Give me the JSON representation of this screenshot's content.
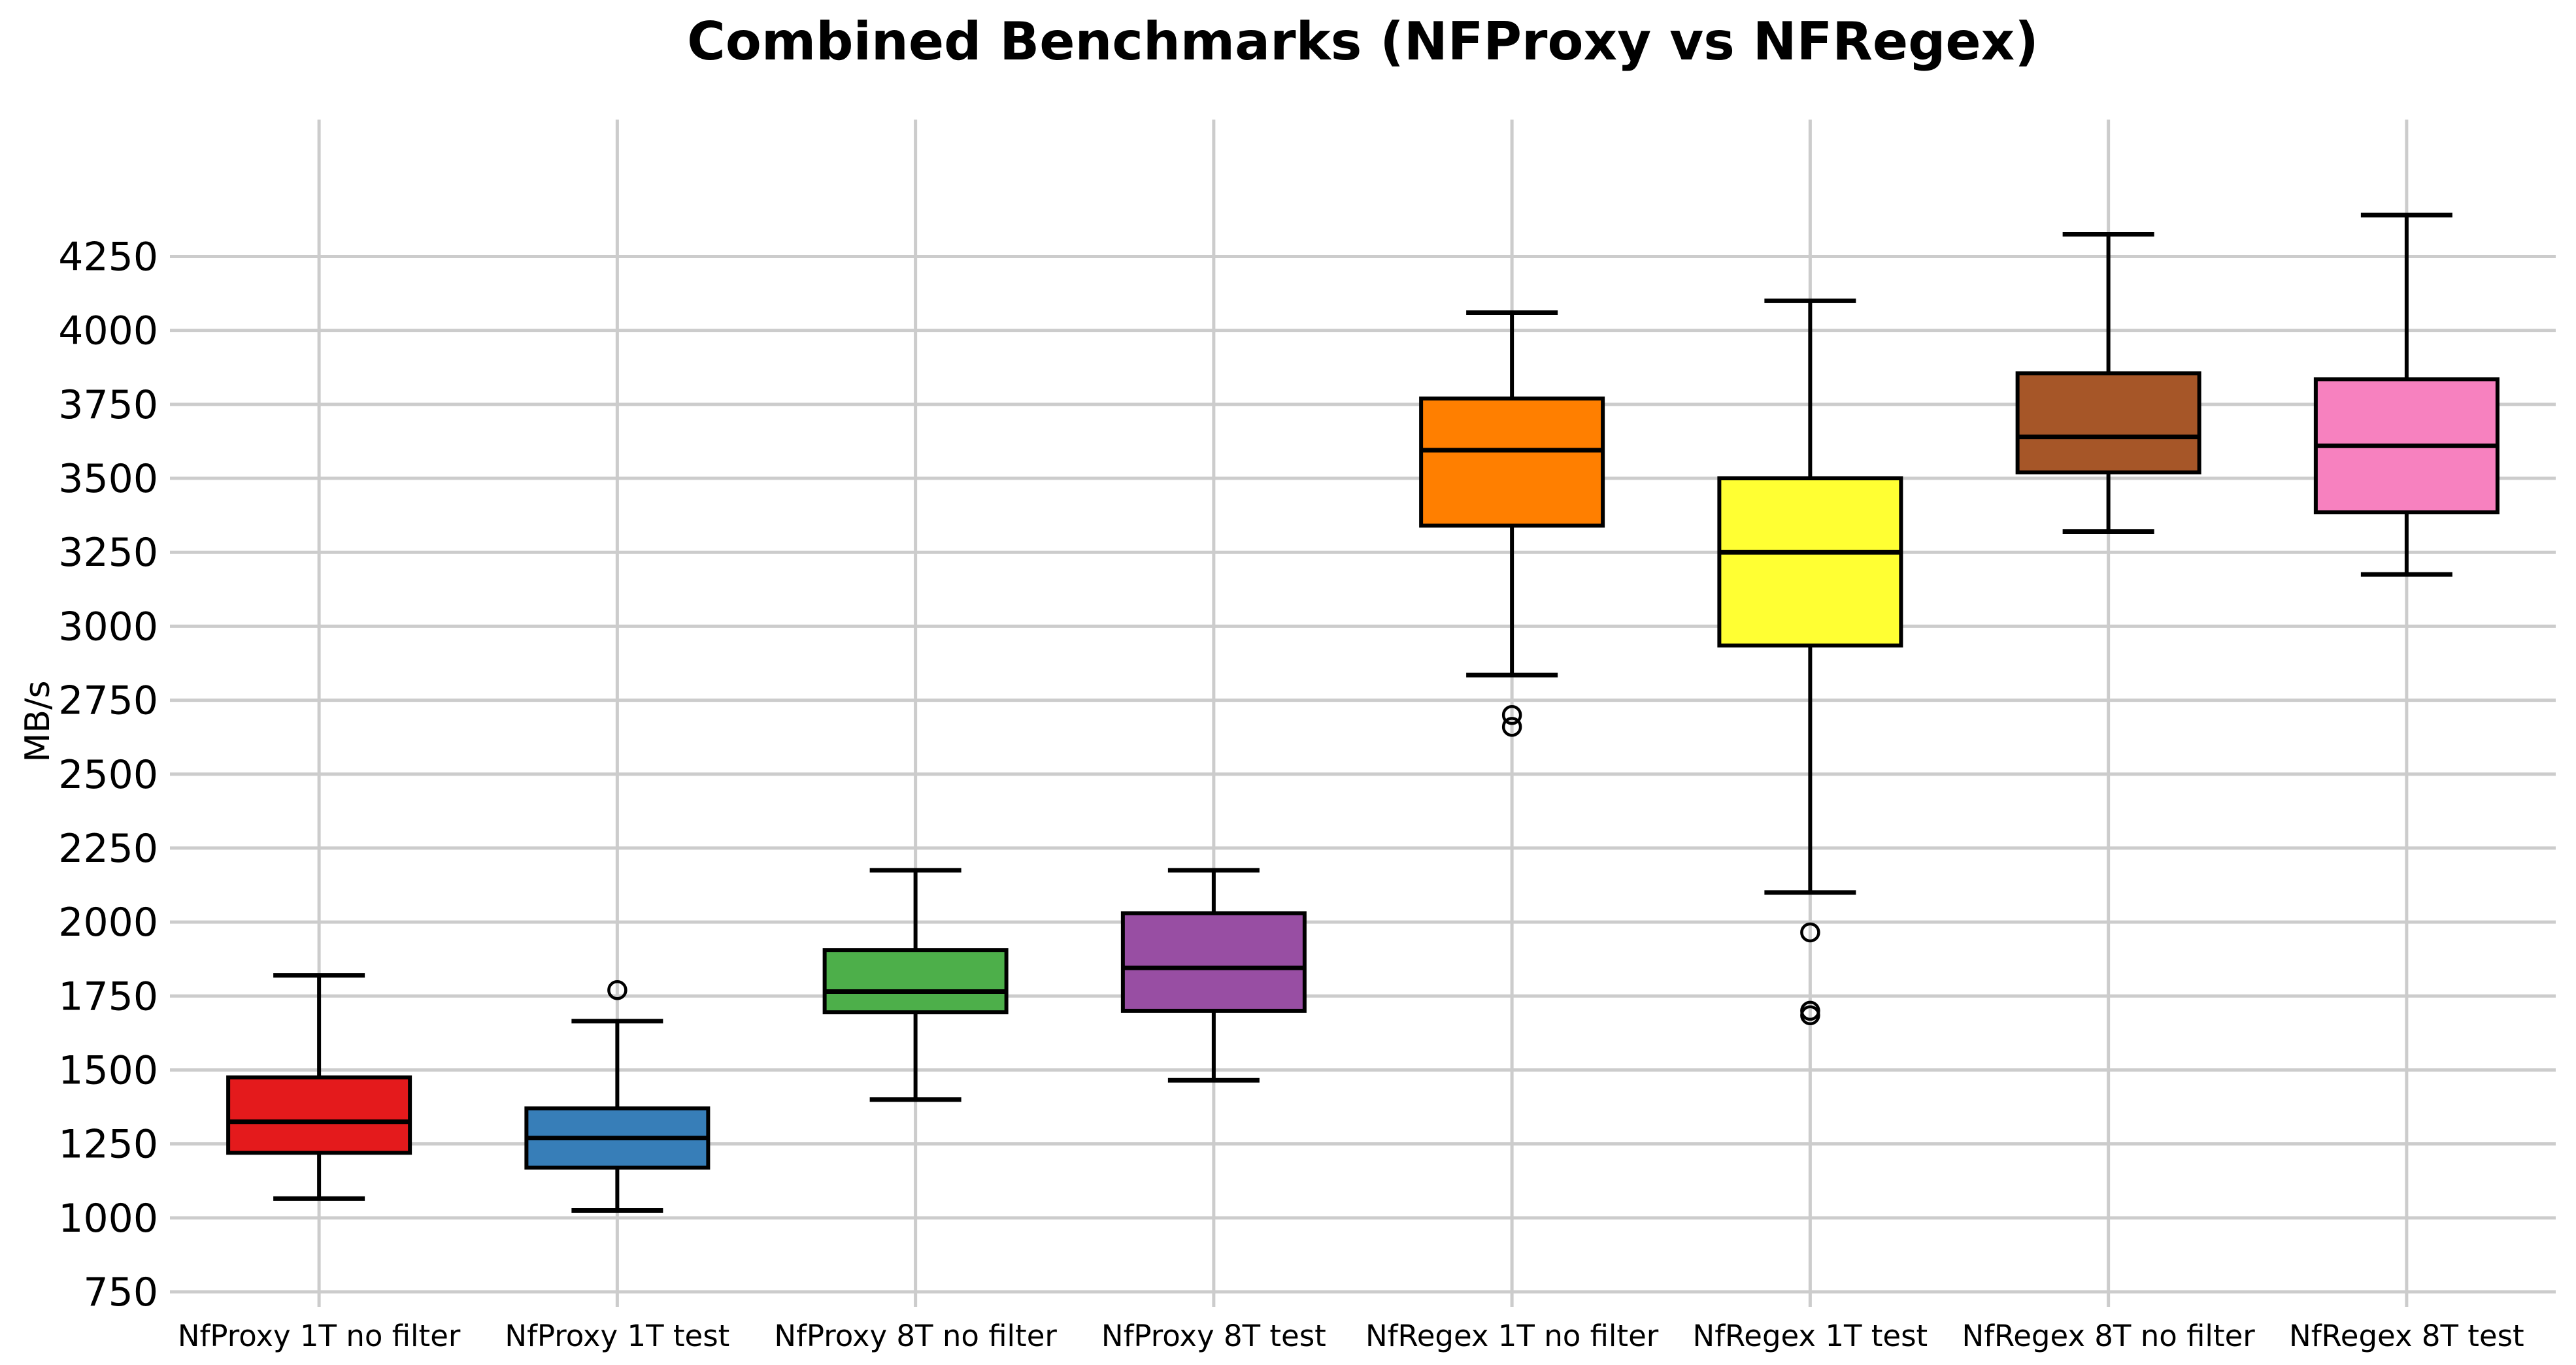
{
  "title": "Combined Benchmarks (NFProxy vs NFRegex)",
  "y_axis": {
    "label": "MB/s",
    "tick_labels": [
      "750",
      "1000",
      "1250",
      "1500",
      "1750",
      "2000",
      "2250",
      "2500",
      "2750",
      "3000",
      "3250",
      "3500",
      "3750",
      "4000",
      "4250"
    ]
  },
  "x_axis": {
    "tick_labels": [
      "NfProxy 1T no filter",
      "NfProxy 1T test",
      "NfProxy 8T no filter",
      "NfProxy 8T test",
      "NfRegex 1T no filter",
      "NfRegex 1T test",
      "NfRegex 8T no filter",
      "NfRegex 8T test"
    ]
  },
  "colors": {
    "grid": "#cccccc",
    "line": "#000000",
    "background": "#ffffff",
    "palette": [
      "#e41a1c",
      "#377eb8",
      "#4daf4a",
      "#984ea3",
      "#ff7f00",
      "#ffff33",
      "#a65628",
      "#f781bf"
    ]
  },
  "chart_data": {
    "type": "boxplot",
    "title": "Combined Benchmarks (NFProxy vs NFRegex)",
    "xlabel": "",
    "ylabel": "MB/s",
    "ylim": [
      750,
      4715
    ],
    "yticks": [
      750,
      1000,
      1250,
      1500,
      1750,
      2000,
      2250,
      2500,
      2750,
      3000,
      3250,
      3500,
      3750,
      4000,
      4250
    ],
    "grid": {
      "show": true,
      "color": "#cccccc",
      "vertical_per_category": true,
      "frame": false
    },
    "legend": "none",
    "categories": [
      "NfProxy 1T no filter",
      "NfProxy 1T test",
      "NfProxy 8T no filter",
      "NfProxy 8T test",
      "NfRegex 1T no filter",
      "NfRegex 1T test",
      "NfRegex 8T no filter",
      "NfRegex 8T test"
    ],
    "series": [
      {
        "name": "NfProxy 1T no filter",
        "color": "#e41a1c",
        "whisker_low": 1065,
        "q1": 1220,
        "median": 1325,
        "q3": 1475,
        "whisker_high": 1820,
        "outliers": []
      },
      {
        "name": "NfProxy 1T test",
        "color": "#377eb8",
        "whisker_low": 1025,
        "q1": 1170,
        "median": 1270,
        "q3": 1370,
        "whisker_high": 1665,
        "outliers": [
          1770
        ]
      },
      {
        "name": "NfProxy 8T no filter",
        "color": "#4daf4a",
        "whisker_low": 1400,
        "q1": 1695,
        "median": 1765,
        "q3": 1905,
        "whisker_high": 2175,
        "outliers": []
      },
      {
        "name": "NfProxy 8T test",
        "color": "#984ea3",
        "whisker_low": 1465,
        "q1": 1700,
        "median": 1845,
        "q3": 2030,
        "whisker_high": 2175,
        "outliers": []
      },
      {
        "name": "NfRegex 1T no filter",
        "color": "#ff7f00",
        "whisker_low": 2835,
        "q1": 3340,
        "median": 3595,
        "q3": 3770,
        "whisker_high": 4060,
        "outliers": [
          2700,
          2660
        ]
      },
      {
        "name": "NfRegex 1T test",
        "color": "#ffff33",
        "whisker_low": 2100,
        "q1": 2935,
        "median": 3250,
        "q3": 3500,
        "whisker_high": 4100,
        "outliers": [
          1965,
          1700,
          1685
        ]
      },
      {
        "name": "NfRegex 8T no filter",
        "color": "#a65628",
        "whisker_low": 3320,
        "q1": 3520,
        "median": 3640,
        "q3": 3855,
        "whisker_high": 4325,
        "outliers": []
      },
      {
        "name": "NfRegex 8T test",
        "color": "#f781bf",
        "whisker_low": 3175,
        "q1": 3385,
        "median": 3610,
        "q3": 3835,
        "whisker_high": 4390,
        "outliers": []
      }
    ]
  }
}
